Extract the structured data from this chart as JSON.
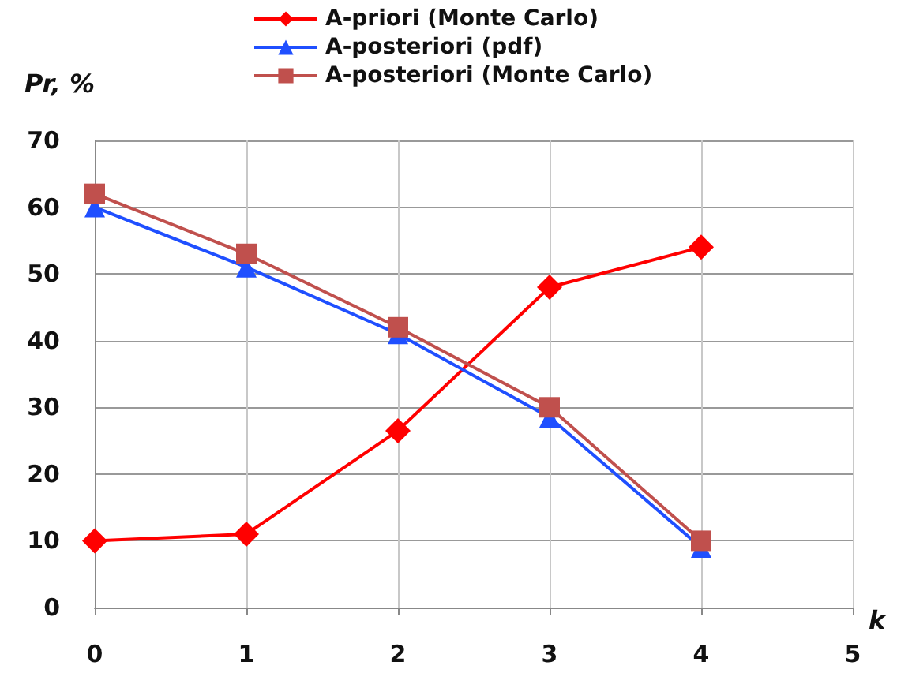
{
  "chart_data": {
    "type": "line",
    "ylabel": "Pr, %",
    "xlabel": "k",
    "x": [
      0,
      1,
      2,
      3,
      4
    ],
    "series": [
      {
        "name": "A-priori (Monte Carlo)",
        "color": "#ff0000",
        "marker": "diamond",
        "values": [
          10,
          11,
          26.5,
          48,
          54
        ]
      },
      {
        "name": "A-posteriori (pdf)",
        "color": "#1f4fff",
        "marker": "triangle",
        "values": [
          60,
          51,
          41,
          28.5,
          9
        ]
      },
      {
        "name": "A-posteriori (Monte Carlo)",
        "color": "#c0504d",
        "marker": "square",
        "values": [
          62,
          53,
          42,
          30,
          10
        ]
      }
    ],
    "xlim": [
      0,
      5
    ],
    "xticks": [
      0,
      1,
      2,
      3,
      4,
      5
    ],
    "ylim": [
      0,
      70
    ],
    "yticks": [
      0,
      10,
      20,
      30,
      40,
      50,
      60,
      70
    ],
    "grid": true,
    "legend": "top",
    "line_style": "solid"
  }
}
